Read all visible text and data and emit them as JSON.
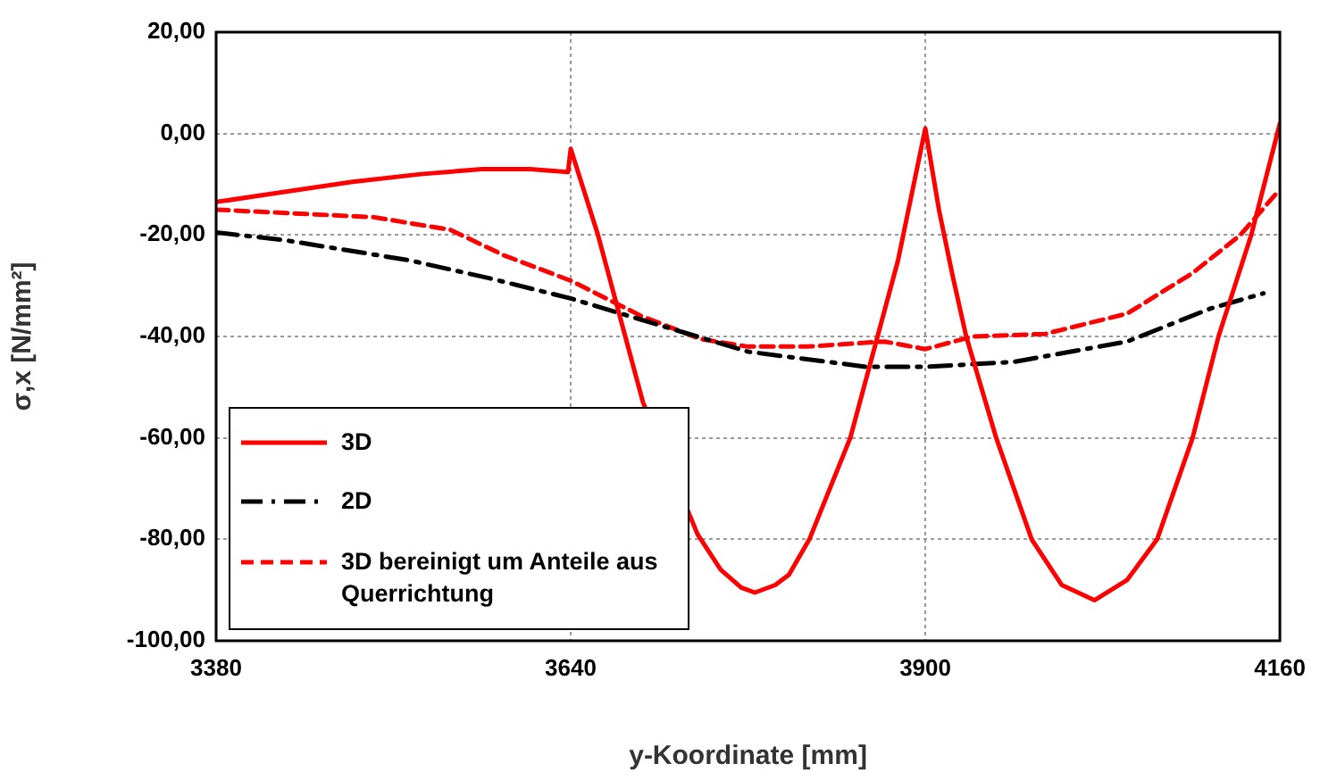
{
  "chart_data": {
    "type": "line",
    "xlabel": "y-Koordinate [mm]",
    "ylabel": "σ,x [N/mm²]",
    "xlim": [
      3380,
      4160
    ],
    "xticks": [
      3380,
      3640,
      3900,
      4160
    ],
    "ylim": [
      -100,
      20
    ],
    "yticks": [
      {
        "value": -100,
        "label": "-100,00"
      },
      {
        "value": -80,
        "label": "-80,00"
      },
      {
        "value": -60,
        "label": "-60,00"
      },
      {
        "value": -40,
        "label": "-40,00"
      },
      {
        "value": -20,
        "label": "-20,00"
      },
      {
        "value": 0,
        "label": "0,00"
      },
      {
        "value": 20,
        "label": "20,00"
      }
    ],
    "grid": true,
    "legend": "bottom left",
    "marker": "none",
    "series": [
      {
        "name": "3D",
        "color": "#ff0000",
        "line_style": "solid",
        "x": [
          3380,
          3430,
          3480,
          3530,
          3575,
          3610,
          3638,
          3640,
          3660,
          3680,
          3693,
          3733,
          3750,
          3765,
          3775,
          3790,
          3800,
          3815,
          3845,
          3865,
          3880,
          3900,
          3910,
          3920,
          3930,
          3952,
          3978,
          4000,
          4024,
          4048,
          4070,
          4096,
          4115,
          4139,
          4160
        ],
        "values": [
          -13.5,
          -11.5,
          -9.5,
          -8,
          -7,
          -7,
          -7.6,
          -3,
          -20,
          -40,
          -53,
          -79,
          -86,
          -89.5,
          -90.5,
          -89,
          -87,
          -80,
          -60,
          -40,
          -25,
          1,
          -15,
          -28,
          -40,
          -60,
          -80,
          -89,
          -92,
          -88,
          -80,
          -60,
          -40,
          -20,
          2
        ]
      },
      {
        "name": "2D",
        "color": "#000000",
        "line_style": "dashdot",
        "x": [
          3380,
          3430,
          3522,
          3580,
          3640,
          3714,
          3770,
          3857,
          3900,
          3965,
          4048,
          4109,
          4148
        ],
        "values": [
          -19.5,
          -21,
          -25,
          -28.5,
          -32.5,
          -38.5,
          -43,
          -46,
          -46,
          -45,
          -41,
          -34.5,
          -31.5
        ]
      },
      {
        "name": "3D bereinigt um Anteile aus Querrichtung",
        "color": "#ff0000",
        "line_style": "dashed",
        "x": [
          3380,
          3496,
          3552,
          3591,
          3640,
          3692,
          3735,
          3770,
          3813,
          3870,
          3900,
          3935,
          3988,
          4048,
          4096,
          4131,
          4160
        ],
        "values": [
          -15,
          -16.5,
          -19,
          -24,
          -29,
          -36,
          -40.5,
          -42,
          -42,
          -41,
          -42.5,
          -40,
          -39.5,
          -35.5,
          -27.5,
          -20,
          -11
        ]
      }
    ]
  }
}
